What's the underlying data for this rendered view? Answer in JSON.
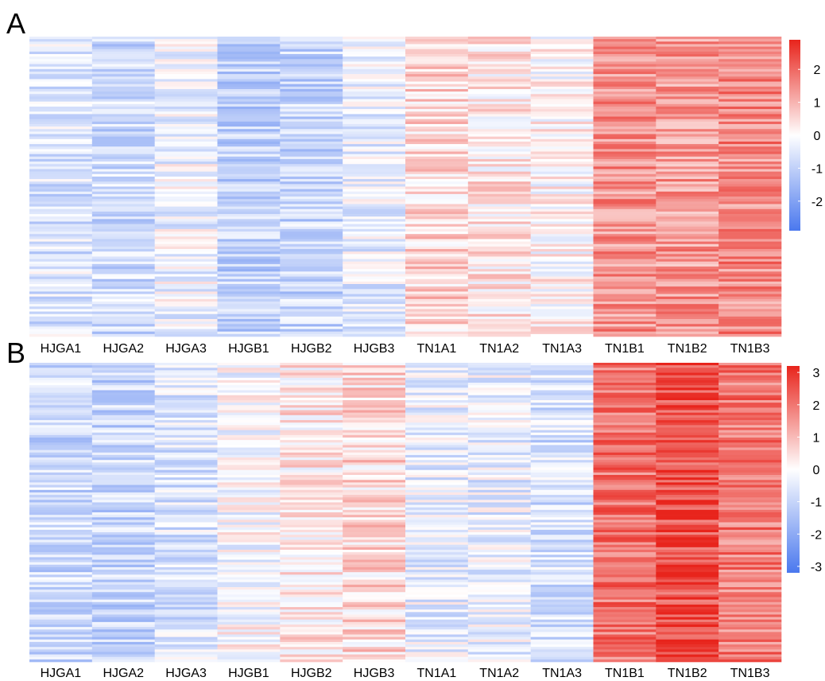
{
  "chart_data": [
    {
      "type": "heatmap",
      "panel_label": "A",
      "columns": [
        "HJGA1",
        "HJGA2",
        "HJGA3",
        "HJGB1",
        "HJGB2",
        "HJGB3",
        "TN1A1",
        "TN1A2",
        "TN1A3",
        "TN1B1",
        "TN1B2",
        "TN1B3"
      ],
      "column_mean_z": [
        -0.6,
        -0.8,
        -0.3,
        -1.0,
        -0.9,
        -0.4,
        0.6,
        0.3,
        0.1,
        1.5,
        1.4,
        1.6
      ],
      "color_scale": {
        "min": -3,
        "max": 3,
        "low": "#4a78ee",
        "mid": "#ffffff",
        "high": "#e8241c"
      },
      "legend_ticks": [
        "2",
        "1",
        "0",
        "-1",
        "-2"
      ],
      "legend_tick_values": [
        2,
        1,
        0,
        -1,
        -2
      ],
      "legend_range": [
        -2.9,
        2.9
      ],
      "row_labels_shown": false
    },
    {
      "type": "heatmap",
      "panel_label": "B",
      "columns": [
        "HJGA1",
        "HJGA2",
        "HJGA3",
        "HJGB1",
        "HJGB2",
        "HJGB3",
        "TN1A1",
        "TN1A2",
        "TN1A3",
        "TN1B1",
        "TN1B2",
        "TN1B3"
      ],
      "column_mean_z": [
        -0.8,
        -0.9,
        -0.6,
        -0.1,
        0.3,
        0.5,
        -0.4,
        -0.4,
        -0.7,
        1.9,
        2.4,
        1.8
      ],
      "color_scale": {
        "min": -3,
        "max": 3,
        "low": "#4a78ee",
        "mid": "#ffffff",
        "high": "#e8241c"
      },
      "legend_ticks": [
        "3",
        "2",
        "1",
        "0",
        "-1",
        "-2",
        "-3"
      ],
      "legend_tick_values": [
        3,
        2,
        1,
        0,
        -1,
        -2,
        -3
      ],
      "legend_range": [
        -3.2,
        3.2
      ],
      "row_labels_shown": false
    }
  ]
}
